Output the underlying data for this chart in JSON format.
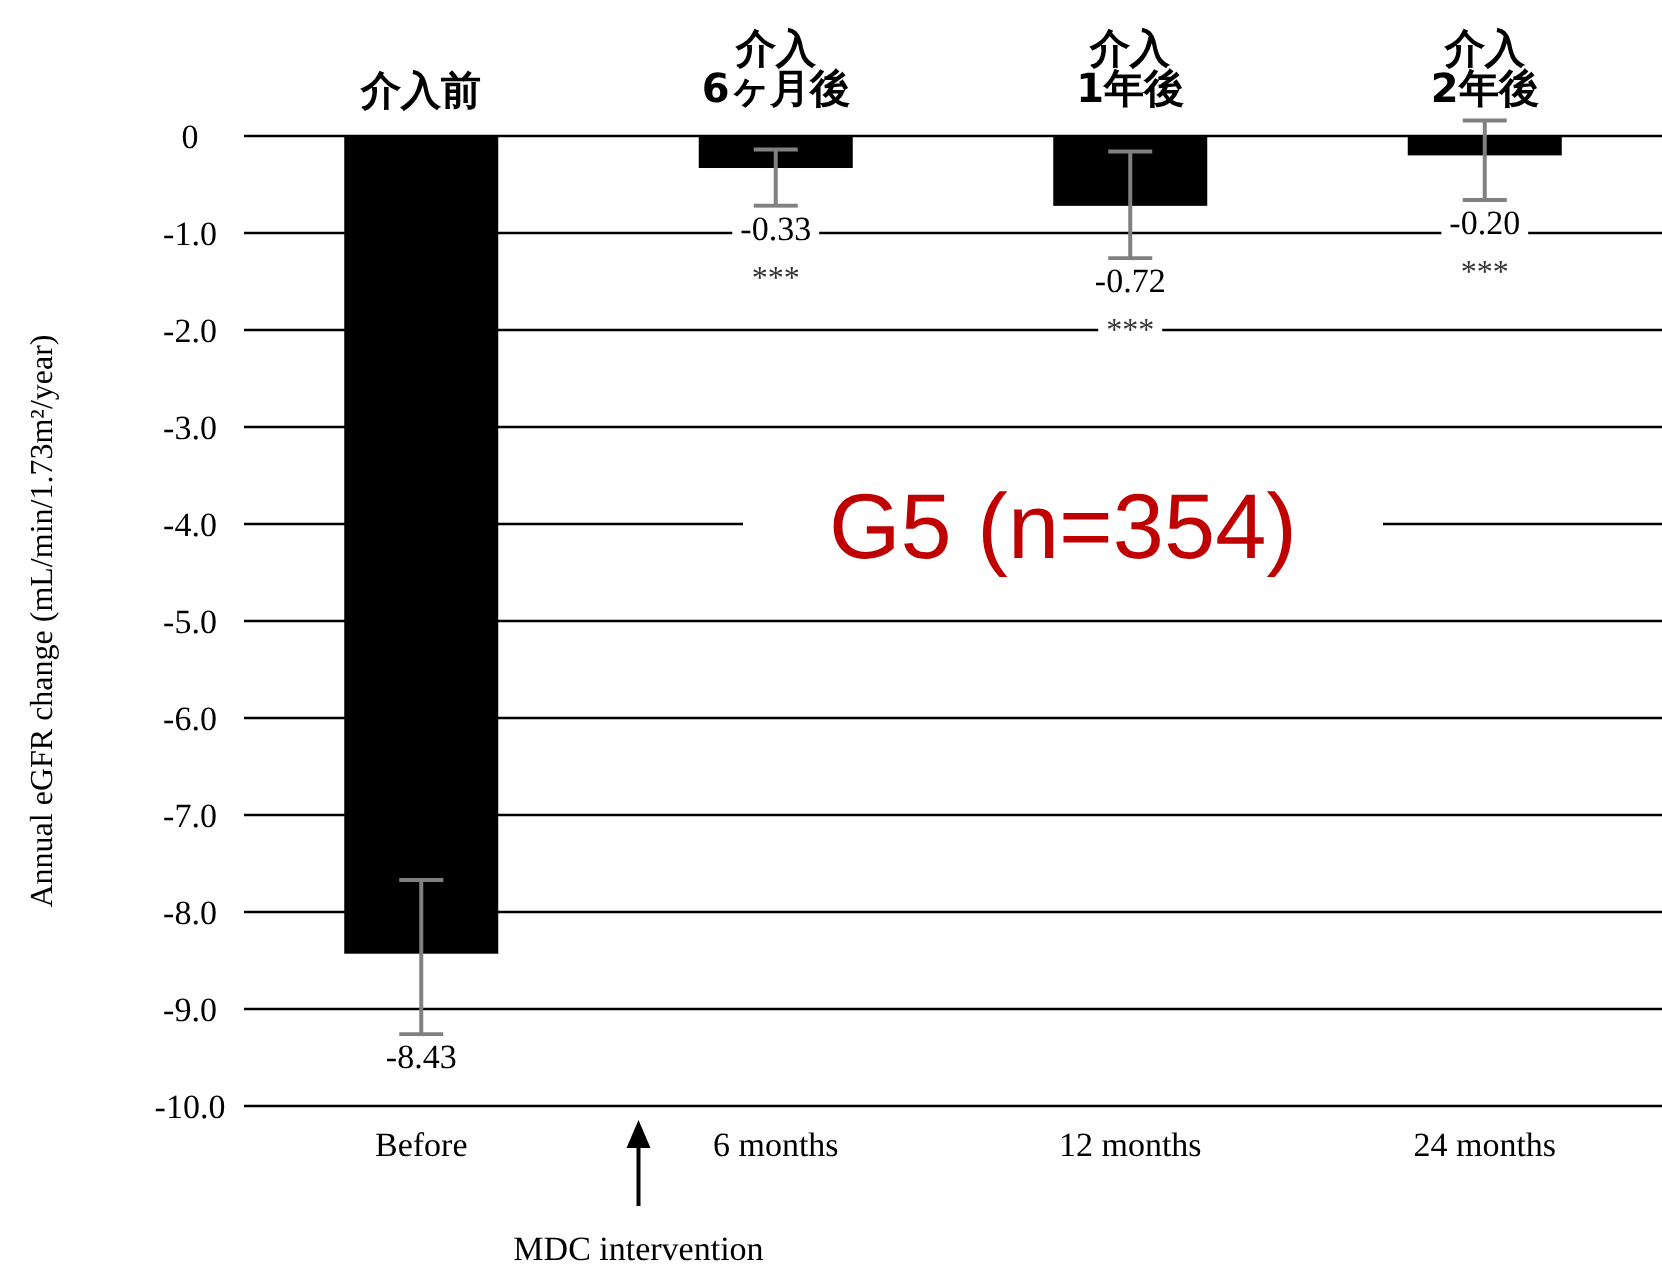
{
  "chart_data": {
    "type": "bar",
    "ylabel": "Annual eGFR change (mL/min/1.73m²/year)",
    "categories": [
      "Before",
      "6 months",
      "12 months",
      "24 months"
    ],
    "values": [
      -8.43,
      -0.33,
      -0.72,
      -0.2
    ],
    "errors": [
      [
        -9.26,
        -7.67
      ],
      [
        -0.72,
        -0.14
      ],
      [
        -1.26,
        -0.16
      ],
      [
        -0.66,
        0.16
      ]
    ],
    "color": "#000000",
    "value_labels": [
      "-8.43",
      "-0.33",
      "-0.72",
      "-0.20"
    ],
    "ylim": [
      -10,
      0
    ],
    "yticks": [
      0,
      {
        "value": -1,
        "label": "-1.0"
      },
      {
        "value": -2,
        "label": "-2.0"
      },
      {
        "value": -3,
        "label": "-3.0"
      },
      {
        "value": -4,
        "label": "-4.0"
      },
      {
        "value": -5,
        "label": "-5.0"
      },
      {
        "value": -6,
        "label": "-6.0"
      },
      {
        "value": -7,
        "label": "-7.0"
      },
      {
        "value": -8,
        "label": "-8.0"
      },
      {
        "value": -9,
        "label": "-9.0"
      },
      {
        "value": -10,
        "label": "-10.0"
      }
    ],
    "grid": "y",
    "annotations": [
      "介入前",
      "介入\n6ヶ月後",
      "***",
      "介入\n1年後",
      "***",
      "介入\n2年後",
      "***",
      "G5 (n=354)",
      "MDC intervention"
    ]
  }
}
